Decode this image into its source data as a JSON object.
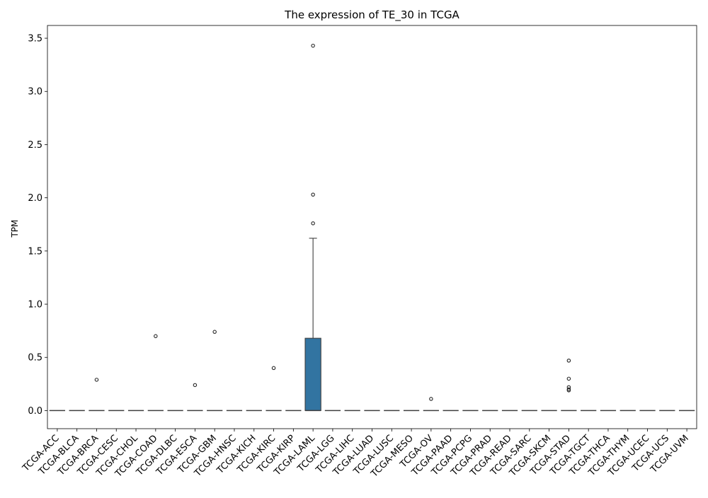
{
  "chart_data": {
    "type": "box",
    "title": "The expression of TE_30 in TCGA",
    "xlabel": "",
    "ylabel": "TPM",
    "ylim": [
      -0.17,
      3.62
    ],
    "yticks": [
      0.0,
      0.5,
      1.0,
      1.5,
      2.0,
      2.5,
      3.0,
      3.5
    ],
    "ytick_labels": [
      "0.0",
      "0.5",
      "1.0",
      "1.5",
      "2.0",
      "2.5",
      "3.0",
      "3.5"
    ],
    "grid": false,
    "box_color": "#3274a1",
    "categories": [
      "TCGA-ACC",
      "TCGA-BLCA",
      "TCGA-BRCA",
      "TCGA-CESC",
      "TCGA-CHOL",
      "TCGA-COAD",
      "TCGA-DLBC",
      "TCGA-ESCA",
      "TCGA-GBM",
      "TCGA-HNSC",
      "TCGA-KICH",
      "TCGA-KIRC",
      "TCGA-KIRP",
      "TCGA-LAML",
      "TCGA-LGG",
      "TCGA-LIHC",
      "TCGA-LUAD",
      "TCGA-LUSC",
      "TCGA-MESO",
      "TCGA-OV",
      "TCGA-PAAD",
      "TCGA-PCPG",
      "TCGA-PRAD",
      "TCGA-READ",
      "TCGA-SARC",
      "TCGA-SKCM",
      "TCGA-STAD",
      "TCGA-TGCT",
      "TCGA-THCA",
      "TCGA-THYM",
      "TCGA-UCEC",
      "TCGA-UCS",
      "TCGA-UVM"
    ],
    "boxes": [
      {
        "q1": 0,
        "median": 0,
        "q3": 0,
        "whislo": 0,
        "whishi": 0,
        "fliers": []
      },
      {
        "q1": 0,
        "median": 0,
        "q3": 0,
        "whislo": 0,
        "whishi": 0,
        "fliers": []
      },
      {
        "q1": 0,
        "median": 0,
        "q3": 0,
        "whislo": 0,
        "whishi": 0,
        "fliers": [
          0.29
        ]
      },
      {
        "q1": 0,
        "median": 0,
        "q3": 0,
        "whislo": 0,
        "whishi": 0,
        "fliers": []
      },
      {
        "q1": 0,
        "median": 0,
        "q3": 0,
        "whislo": 0,
        "whishi": 0,
        "fliers": []
      },
      {
        "q1": 0,
        "median": 0,
        "q3": 0,
        "whislo": 0,
        "whishi": 0,
        "fliers": [
          0.7
        ]
      },
      {
        "q1": 0,
        "median": 0,
        "q3": 0,
        "whislo": 0,
        "whishi": 0,
        "fliers": []
      },
      {
        "q1": 0,
        "median": 0,
        "q3": 0,
        "whislo": 0,
        "whishi": 0,
        "fliers": [
          0.24
        ]
      },
      {
        "q1": 0,
        "median": 0,
        "q3": 0,
        "whislo": 0,
        "whishi": 0,
        "fliers": [
          0.74
        ]
      },
      {
        "q1": 0,
        "median": 0,
        "q3": 0,
        "whislo": 0,
        "whishi": 0,
        "fliers": []
      },
      {
        "q1": 0,
        "median": 0,
        "q3": 0,
        "whislo": 0,
        "whishi": 0,
        "fliers": []
      },
      {
        "q1": 0,
        "median": 0,
        "q3": 0,
        "whislo": 0,
        "whishi": 0,
        "fliers": [
          0.4
        ]
      },
      {
        "q1": 0,
        "median": 0,
        "q3": 0,
        "whislo": 0,
        "whishi": 0,
        "fliers": []
      },
      {
        "q1": 0,
        "median": 0,
        "q3": 0.68,
        "whislo": 0,
        "whishi": 1.62,
        "fliers": [
          1.76,
          2.03,
          3.43
        ]
      },
      {
        "q1": 0,
        "median": 0,
        "q3": 0,
        "whislo": 0,
        "whishi": 0,
        "fliers": []
      },
      {
        "q1": 0,
        "median": 0,
        "q3": 0,
        "whislo": 0,
        "whishi": 0,
        "fliers": []
      },
      {
        "q1": 0,
        "median": 0,
        "q3": 0,
        "whislo": 0,
        "whishi": 0,
        "fliers": []
      },
      {
        "q1": 0,
        "median": 0,
        "q3": 0,
        "whislo": 0,
        "whishi": 0,
        "fliers": []
      },
      {
        "q1": 0,
        "median": 0,
        "q3": 0,
        "whislo": 0,
        "whishi": 0,
        "fliers": []
      },
      {
        "q1": 0,
        "median": 0,
        "q3": 0,
        "whislo": 0,
        "whishi": 0,
        "fliers": [
          0.11
        ]
      },
      {
        "q1": 0,
        "median": 0,
        "q3": 0,
        "whislo": 0,
        "whishi": 0,
        "fliers": []
      },
      {
        "q1": 0,
        "median": 0,
        "q3": 0,
        "whislo": 0,
        "whishi": 0,
        "fliers": []
      },
      {
        "q1": 0,
        "median": 0,
        "q3": 0,
        "whislo": 0,
        "whishi": 0,
        "fliers": []
      },
      {
        "q1": 0,
        "median": 0,
        "q3": 0,
        "whislo": 0,
        "whishi": 0,
        "fliers": []
      },
      {
        "q1": 0,
        "median": 0,
        "q3": 0,
        "whislo": 0,
        "whishi": 0,
        "fliers": []
      },
      {
        "q1": 0,
        "median": 0,
        "q3": 0,
        "whislo": 0,
        "whishi": 0,
        "fliers": []
      },
      {
        "q1": 0,
        "median": 0,
        "q3": 0,
        "whislo": 0,
        "whishi": 0,
        "fliers": [
          0.19,
          0.2,
          0.22,
          0.3,
          0.47
        ]
      },
      {
        "q1": 0,
        "median": 0,
        "q3": 0,
        "whislo": 0,
        "whishi": 0,
        "fliers": []
      },
      {
        "q1": 0,
        "median": 0,
        "q3": 0,
        "whislo": 0,
        "whishi": 0,
        "fliers": []
      },
      {
        "q1": 0,
        "median": 0,
        "q3": 0,
        "whislo": 0,
        "whishi": 0,
        "fliers": []
      },
      {
        "q1": 0,
        "median": 0,
        "q3": 0,
        "whislo": 0,
        "whishi": 0,
        "fliers": []
      },
      {
        "q1": 0,
        "median": 0,
        "q3": 0,
        "whislo": 0,
        "whishi": 0,
        "fliers": []
      },
      {
        "q1": 0,
        "median": 0,
        "q3": 0,
        "whislo": 0,
        "whishi": 0,
        "fliers": []
      }
    ]
  }
}
